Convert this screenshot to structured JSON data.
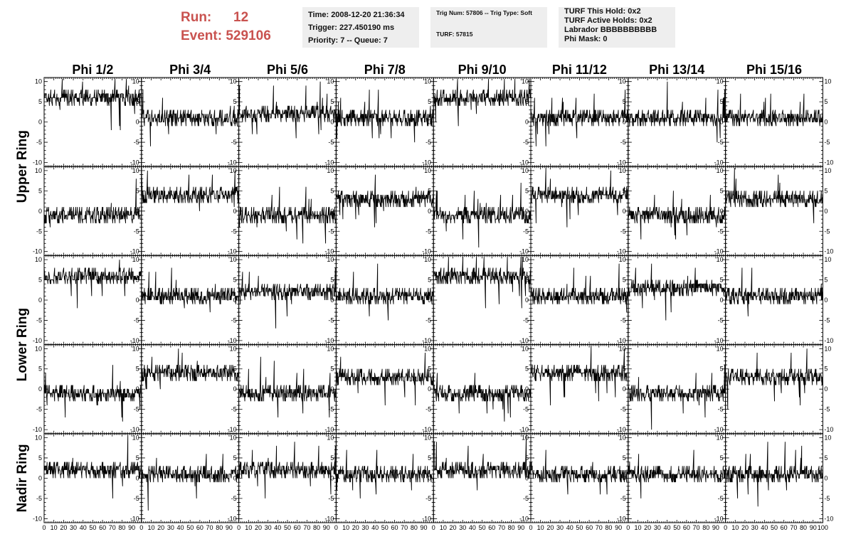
{
  "header": {
    "run_label": "Run:",
    "run_value": "12",
    "event_label": "Event:",
    "event_value": "529106",
    "time_line": "Time: 2008-12-20 21:36:34",
    "trigger_line": "Trigger: 227.450190 ms",
    "priority_line": "Priority: 7 -- Queue: 7",
    "trig_line": "Trig Num: 57806 -- Trig Type: Soft",
    "turf_line": "TURF: 57815",
    "turf_this_hold": "TURF This Hold: 0x2",
    "turf_active_holds": "TURF Active Holds: 0x2",
    "labrador": "Labrador BBBBBBBBBB",
    "phi_mask": "Phi Mask: 0"
  },
  "colors": {
    "run_text": "#c9524f",
    "info_bg": "#eeeeee",
    "trace": "#000000"
  },
  "chart_data": {
    "type": "line",
    "grid": false,
    "columns": [
      "Phi 1/2",
      "Phi 3/4",
      "Phi 5/6",
      "Phi 7/8",
      "Phi 9/10",
      "Phi 11/12",
      "Phi 13/14",
      "Phi 15/16"
    ],
    "ring_labels": [
      "Upper Ring",
      "Lower Ring",
      "Nadir Ring"
    ],
    "xlim": [
      0,
      100
    ],
    "ylim": [
      -11,
      11
    ],
    "x_ticks": [
      "0",
      "10",
      "20",
      "30",
      "40",
      "50",
      "60",
      "70",
      "80",
      "90",
      "100"
    ],
    "y_ticks": [
      "10",
      "5",
      "0",
      "-5",
      "-10"
    ],
    "row_baselines": [
      [
        6,
        1,
        2,
        1,
        6,
        1,
        1,
        1
      ],
      [
        -1,
        4,
        -1,
        3,
        -1,
        4,
        -1,
        3
      ],
      [
        6,
        1,
        2,
        1,
        6,
        1,
        3,
        1
      ],
      [
        -1,
        4,
        -1,
        3,
        -1,
        4,
        -1,
        3
      ],
      [
        2,
        1,
        2,
        1,
        2,
        1,
        1,
        1
      ]
    ]
  }
}
